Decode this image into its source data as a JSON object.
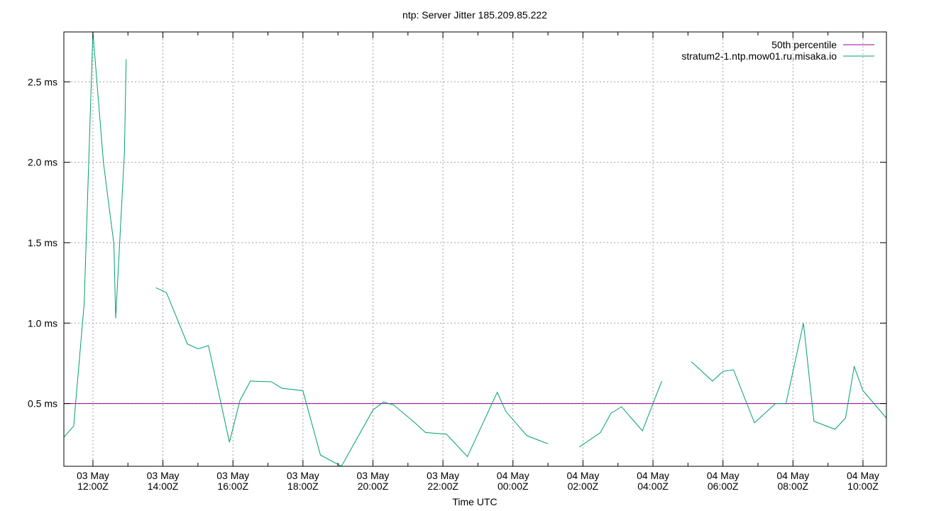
{
  "chart_data": {
    "type": "line",
    "title": "ntp: Server Jitter 185.209.85.222",
    "xlabel": "Time UTC",
    "ylabel": "",
    "ylim": [
      0.11,
      2.81
    ],
    "y_ticks": [
      {
        "value": 0.5,
        "label": "0.5 ms"
      },
      {
        "value": 1.0,
        "label": "1.0 ms"
      },
      {
        "value": 1.5,
        "label": "1.5 ms"
      },
      {
        "value": 2.0,
        "label": "2.0 ms"
      },
      {
        "value": 2.5,
        "label": "2.5 ms"
      }
    ],
    "xlim_hours": [
      11.17,
      34.67
    ],
    "x_ticks": [
      {
        "hour": 12,
        "line1": "03 May",
        "line2": "12:00Z"
      },
      {
        "hour": 14,
        "line1": "03 May",
        "line2": "14:00Z"
      },
      {
        "hour": 16,
        "line1": "03 May",
        "line2": "16:00Z"
      },
      {
        "hour": 18,
        "line1": "03 May",
        "line2": "18:00Z"
      },
      {
        "hour": 20,
        "line1": "03 May",
        "line2": "20:00Z"
      },
      {
        "hour": 22,
        "line1": "03 May",
        "line2": "22:00Z"
      },
      {
        "hour": 24,
        "line1": "04 May",
        "line2": "00:00Z"
      },
      {
        "hour": 26,
        "line1": "04 May",
        "line2": "02:00Z"
      },
      {
        "hour": 28,
        "line1": "04 May",
        "line2": "04:00Z"
      },
      {
        "hour": 30,
        "line1": "04 May",
        "line2": "06:00Z"
      },
      {
        "hour": 32,
        "line1": "04 May",
        "line2": "08:00Z"
      },
      {
        "hour": 34,
        "line1": "04 May",
        "line2": "10:00Z"
      }
    ],
    "legend_position": "top-right",
    "grid": true,
    "series": [
      {
        "name": "50th percentile",
        "color": "#990099",
        "kind": "hline",
        "value": 0.5
      },
      {
        "name": "stratum2-1.ntp.mow01.ru.misaka.io",
        "color": "#009e73",
        "kind": "line",
        "segments": [
          [
            [
              11.17,
              0.29
            ],
            [
              11.45,
              0.36
            ],
            [
              11.75,
              1.12
            ],
            [
              12.0,
              2.81
            ],
            [
              12.3,
              2.0
            ],
            [
              12.6,
              1.49
            ],
            [
              12.65,
              1.03
            ],
            [
              12.9,
              2.06
            ],
            [
              12.95,
              2.64
            ]
          ],
          [
            [
              13.8,
              1.22
            ],
            [
              14.1,
              1.19
            ],
            [
              14.7,
              0.87
            ],
            [
              15.0,
              0.84
            ],
            [
              15.3,
              0.86
            ],
            [
              15.9,
              0.26
            ],
            [
              16.2,
              0.52
            ],
            [
              16.5,
              0.64
            ],
            [
              17.1,
              0.635
            ],
            [
              17.4,
              0.595
            ],
            [
              18.0,
              0.58
            ],
            [
              18.5,
              0.18
            ],
            [
              19.1,
              0.11
            ],
            [
              20.0,
              0.46
            ],
            [
              20.3,
              0.51
            ],
            [
              20.6,
              0.49
            ],
            [
              21.2,
              0.38
            ],
            [
              21.5,
              0.32
            ],
            [
              22.1,
              0.31
            ],
            [
              22.7,
              0.17
            ],
            [
              23.55,
              0.57
            ],
            [
              23.8,
              0.45
            ],
            [
              24.4,
              0.3
            ],
            [
              25.0,
              0.25
            ]
          ],
          [
            [
              25.9,
              0.23
            ],
            [
              26.5,
              0.32
            ],
            [
              26.8,
              0.44
            ],
            [
              27.1,
              0.48
            ],
            [
              27.7,
              0.33
            ],
            [
              28.25,
              0.64
            ]
          ],
          [
            [
              29.1,
              0.76
            ],
            [
              29.7,
              0.64
            ],
            [
              30.0,
              0.7
            ],
            [
              30.3,
              0.71
            ],
            [
              30.9,
              0.38
            ],
            [
              31.5,
              0.5
            ],
            [
              31.8,
              0.5
            ],
            [
              32.3,
              1.0
            ],
            [
              32.6,
              0.39
            ],
            [
              33.2,
              0.34
            ],
            [
              33.5,
              0.41
            ],
            [
              33.75,
              0.73
            ],
            [
              34.0,
              0.58
            ],
            [
              34.67,
              0.41
            ]
          ]
        ]
      }
    ]
  }
}
